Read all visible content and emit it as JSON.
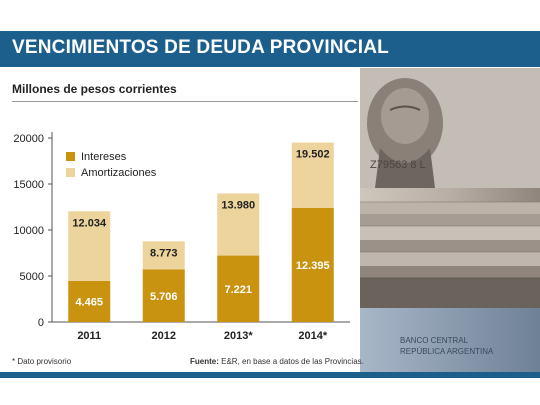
{
  "header": {
    "title": "VENCIMIENTOS DE DEUDA PROVINCIAL"
  },
  "subtitle": "Millones de pesos corrientes",
  "footer": {
    "note": "* Dato provisorio",
    "source_label": "Fuente:",
    "source_text": "E&R, en base a datos de las Provincias."
  },
  "colors": {
    "intereses": "#c9920f",
    "amortizaciones": "#ecd49c",
    "header": "#1d5f8c"
  },
  "photo": {
    "icon": "banknotes-photo"
  },
  "chart_data": {
    "type": "bar",
    "stacked": true,
    "categories": [
      "2011",
      "2012",
      "2013*",
      "2014*"
    ],
    "series": [
      {
        "name": "Intereses",
        "values": [
          4.465,
          5.706,
          7.221,
          12.395
        ],
        "value_labels": [
          "4.465",
          "5.706",
          "7.221",
          "12.395"
        ]
      },
      {
        "name": "Amortizaciones",
        "values": [
          12.034,
          8.773,
          13.98,
          19.502
        ],
        "value_labels": [
          "12.034",
          "8.773",
          "13.980",
          "19.502"
        ]
      }
    ],
    "top_totals_note": "",
    "ylim": [
      0,
      20000
    ],
    "yticks": [
      "20000",
      "15000",
      "10000",
      "5000",
      "0"
    ],
    "ytick_values": [
      20000,
      15000,
      10000,
      5000,
      0
    ],
    "grid": false,
    "legend": "top-left",
    "xlabel": "",
    "ylabel": ""
  }
}
